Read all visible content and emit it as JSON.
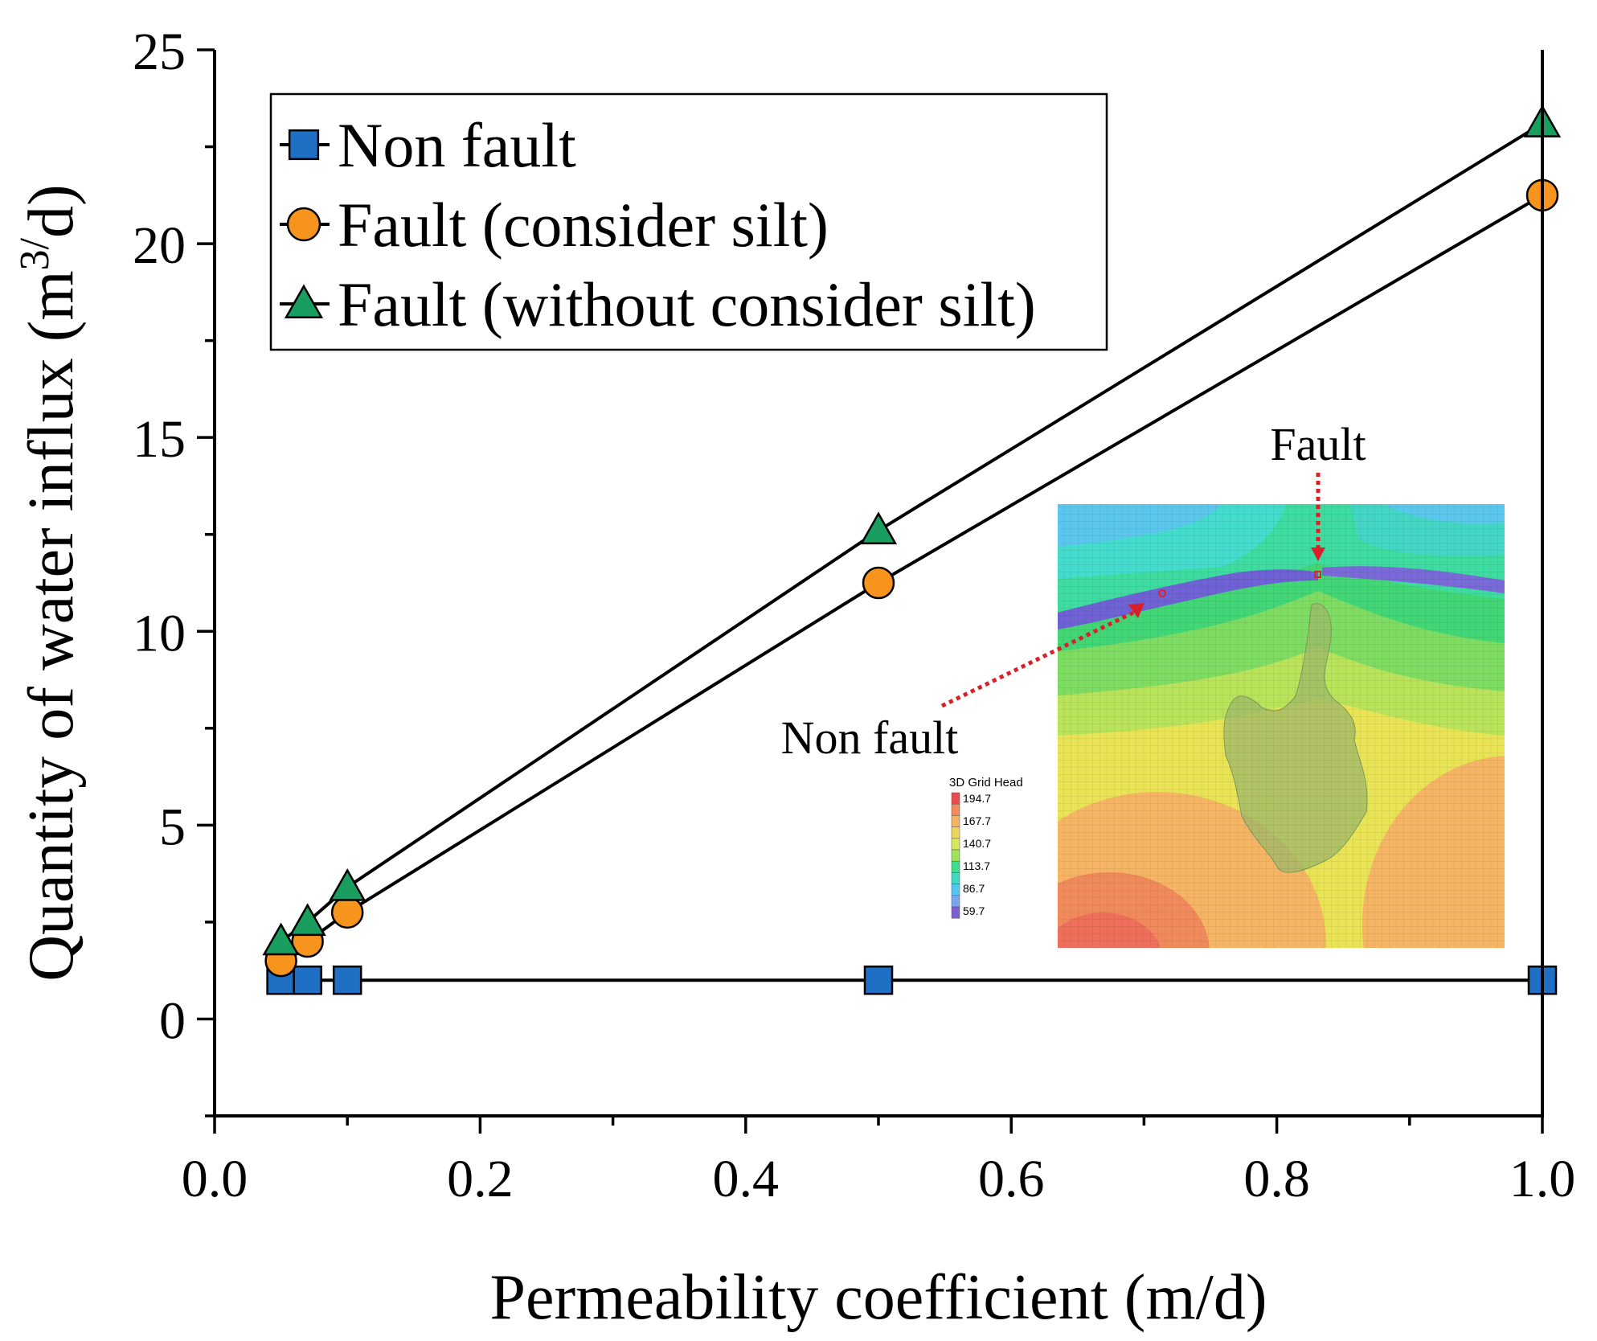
{
  "chart_data": {
    "type": "line",
    "title": "",
    "xlabel": "Permeability coefficient (m/d)",
    "ylabel": {
      "main": "Quantity of water influx (m",
      "sup": "3/",
      "end": "d)"
    },
    "xlim": [
      0.0,
      1.0
    ],
    "ylim": [
      -2.5,
      25
    ],
    "xticks": [
      "0.0",
      "0.2",
      "0.4",
      "0.6",
      "0.8",
      "1.0"
    ],
    "yticks": [
      "0",
      "5",
      "10",
      "15",
      "20",
      "25"
    ],
    "x": [
      0.05,
      0.07,
      0.1,
      0.5,
      1.0
    ],
    "series": [
      {
        "name": "Non fault",
        "marker": "square",
        "color": "#1f6fc5",
        "values": [
          1.0,
          1.0,
          1.0,
          1.0,
          1.0
        ]
      },
      {
        "name": "Fault (consider silt)",
        "marker": "circle",
        "color": "#f7941d",
        "values": [
          1.5,
          2.0,
          2.75,
          11.25,
          21.25
        ]
      },
      {
        "name": "Fault (without consider silt)",
        "marker": "triangle",
        "color": "#1a9e5f",
        "values": [
          2.0,
          2.5,
          3.4,
          12.6,
          23.1
        ]
      }
    ],
    "legend_position": "top-left",
    "inset": {
      "title": "3D Grid Head",
      "levels": [
        "194.7",
        "167.7",
        "140.7",
        "113.7",
        "86.7",
        "59.7"
      ],
      "colors": [
        "#e84c4c",
        "#f3b563",
        "#d7e85a",
        "#3fdc8d",
        "#52c8f0",
        "#7b5fd0"
      ],
      "annotations": [
        "Fault",
        "Non fault"
      ]
    }
  }
}
